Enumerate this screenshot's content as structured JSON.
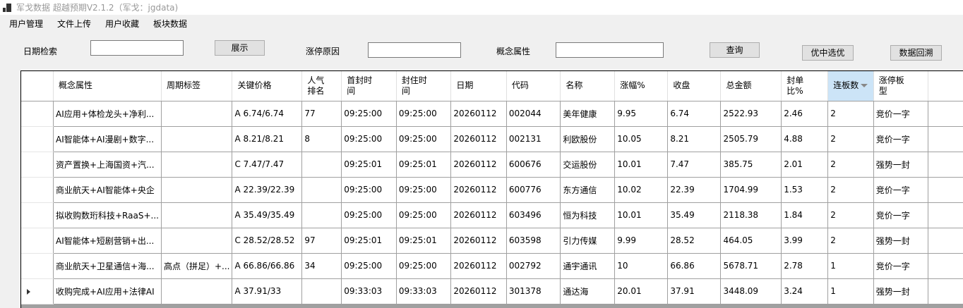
{
  "window": {
    "title": "军戈数据 超越预期V2.1.2（军戈：jgdata)",
    "icon": "app-grid-icon"
  },
  "menu": [
    "用户管理",
    "文件上传",
    "用户收藏",
    "板块数据"
  ],
  "filters": {
    "date_label": "日期检索",
    "date_value": "",
    "show_button": "展示",
    "reason_label": "涨停原因",
    "reason_value": "",
    "concept_label": "概念属性",
    "concept_value": "",
    "query_button": "查询",
    "select_button": "优中选优",
    "backtest_button": "数据回溯"
  },
  "grid": {
    "columns": [
      "概念属性",
      "周期标签",
      "关键价格",
      "人气\n排名",
      "首封时\n间",
      "封住时\n间",
      "日期",
      "代码",
      "名称",
      "涨幅%",
      "收盘",
      "总金额",
      "封单\n比%",
      "连板数",
      "涨停板\n型",
      ""
    ],
    "sorted_column": "连板数",
    "rows": [
      {
        "current": false,
        "cells": [
          "AI应用+体检龙头+净利...",
          "",
          "A 6.74/6.74",
          "77",
          "09:25:00",
          "09:25:00",
          "20260112",
          "002044",
          "美年健康",
          "9.95",
          "6.74",
          "2522.93",
          "2.46",
          "2",
          "竞价一字",
          ""
        ]
      },
      {
        "current": false,
        "cells": [
          "AI智能体+AI漫剧+数字...",
          "",
          "A 8.21/8.21",
          "8",
          "09:25:00",
          "09:25:00",
          "20260112",
          "002131",
          "利欧股份",
          "10.05",
          "8.21",
          "2505.79",
          "4.88",
          "2",
          "竞价一字",
          ""
        ]
      },
      {
        "current": false,
        "cells": [
          "资产置换+上海国资+汽...",
          "",
          "C 7.47/7.47",
          "",
          "09:25:01",
          "09:25:01",
          "20260112",
          "600676",
          "交运股份",
          "10.01",
          "7.47",
          "385.75",
          "2.01",
          "2",
          "强势一封",
          ""
        ]
      },
      {
        "current": false,
        "cells": [
          "商业航天+AI智能体+央企",
          "",
          "A 22.39/22.39",
          "",
          "09:25:00",
          "09:25:00",
          "20260112",
          "600776",
          "东方通信",
          "10.02",
          "22.39",
          "1704.99",
          "1.53",
          "2",
          "竞价一字",
          ""
        ]
      },
      {
        "current": false,
        "cells": [
          "拟收购数珩科技+RaaS+...",
          "",
          "A 35.49/35.49",
          "",
          "09:25:00",
          "09:25:00",
          "20260112",
          "603496",
          "恒为科技",
          "10.01",
          "35.49",
          "2118.38",
          "1.84",
          "2",
          "竞价一字",
          ""
        ]
      },
      {
        "current": false,
        "cells": [
          "AI智能体+短剧营销+出...",
          "",
          "C 28.52/28.52",
          "97",
          "09:25:01",
          "09:25:01",
          "20260112",
          "603598",
          "引力传媒",
          "9.99",
          "28.52",
          "464.05",
          "3.99",
          "2",
          "强势一封",
          ""
        ]
      },
      {
        "current": false,
        "cells": [
          "商业航天+卫星通信+海...",
          "高点（拼足）+...",
          "A 66.86/66.86",
          "34",
          "09:25:00",
          "09:25:00",
          "20260112",
          "002792",
          "通宇通讯",
          "10",
          "66.86",
          "5678.71",
          "2.78",
          "1",
          "竞价一字",
          ""
        ]
      },
      {
        "current": true,
        "cells": [
          "收购完成+AI应用+法律AI",
          "",
          "A 37.91/33",
          "",
          "09:33:03",
          "09:33:03",
          "20260112",
          "301378",
          "通达海",
          "20.01",
          "37.91",
          "3448.09",
          "3.24",
          "1",
          "强势一封",
          ""
        ]
      }
    ]
  }
}
